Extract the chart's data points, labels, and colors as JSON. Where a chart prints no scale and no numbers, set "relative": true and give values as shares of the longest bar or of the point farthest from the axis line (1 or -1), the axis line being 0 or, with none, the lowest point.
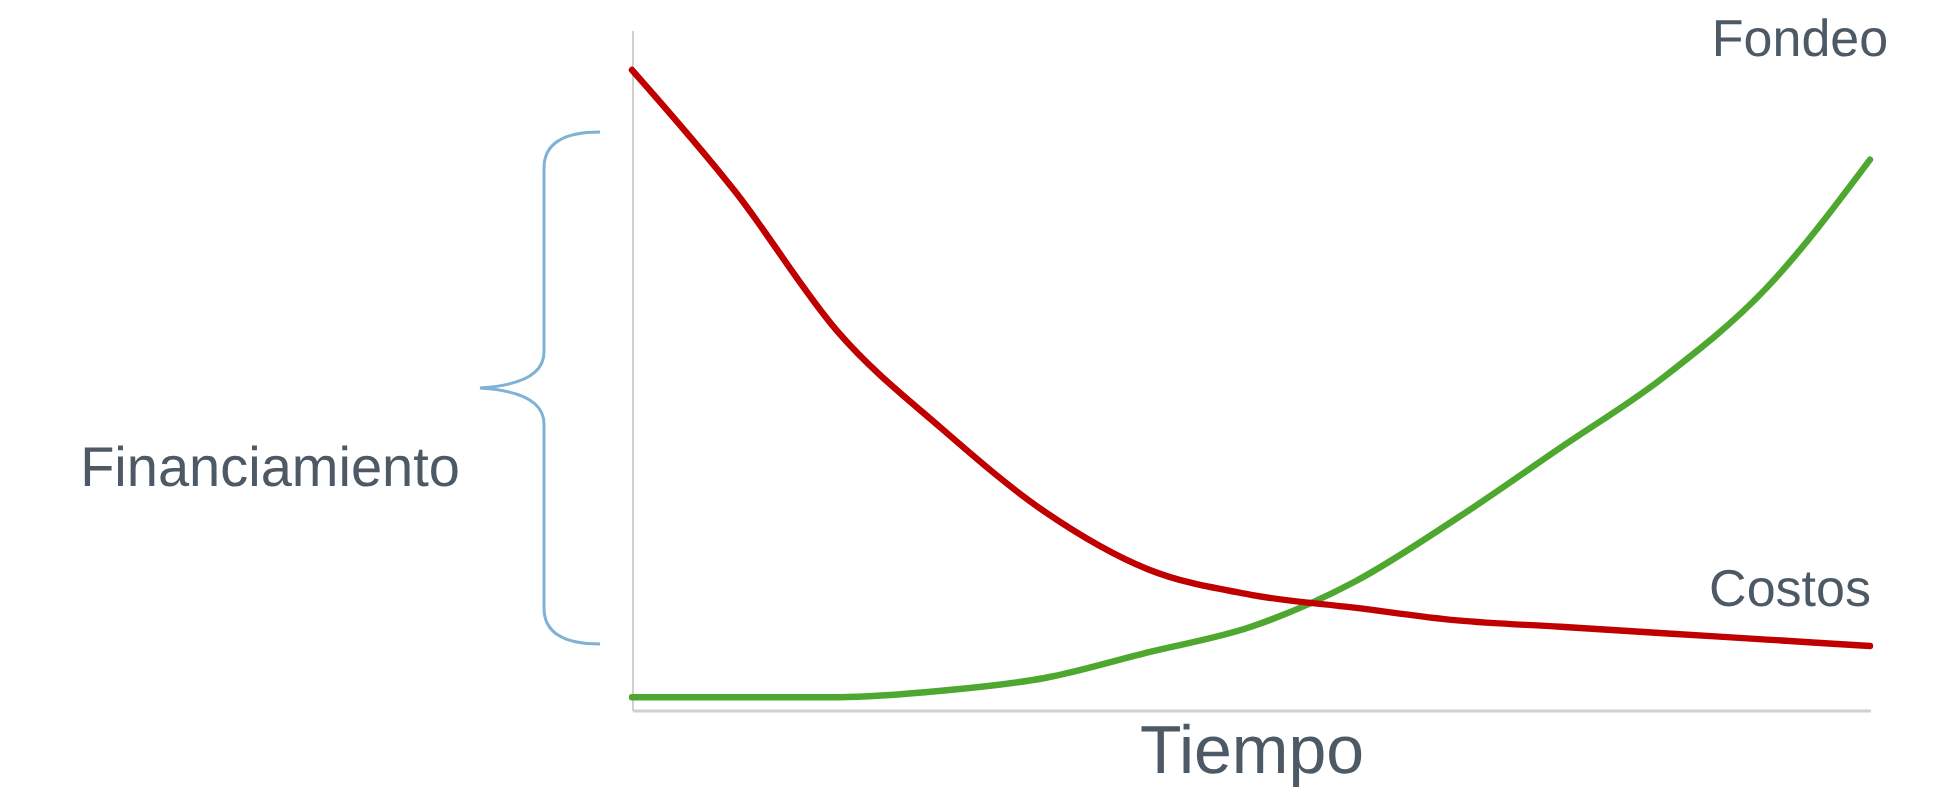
{
  "chart_data": {
    "type": "line",
    "relative": true,
    "xlabel": "Tiempo",
    "tick_labels": false,
    "marker": "none",
    "line_style": "solid",
    "annotations": [
      "Financiamiento"
    ],
    "categories": [
      null,
      null,
      null,
      null,
      null,
      null,
      null,
      null,
      null,
      null,
      null,
      null,
      null
    ],
    "series": [
      {
        "name": "Fondeo",
        "color": "#4ea72e",
        "values": [
          0.02,
          0.02,
          0.02,
          0.03,
          0.05,
          0.09,
          0.13,
          0.2,
          0.3,
          0.41,
          0.52,
          0.66,
          0.86
        ]
      },
      {
        "name": "Costos",
        "color": "#c00000",
        "values": [
          1,
          0.81,
          0.59,
          0.44,
          0.31,
          0.22,
          0.18,
          0.16,
          0.14,
          0.13,
          0.12,
          0.11,
          0.1
        ]
      }
    ]
  }
}
